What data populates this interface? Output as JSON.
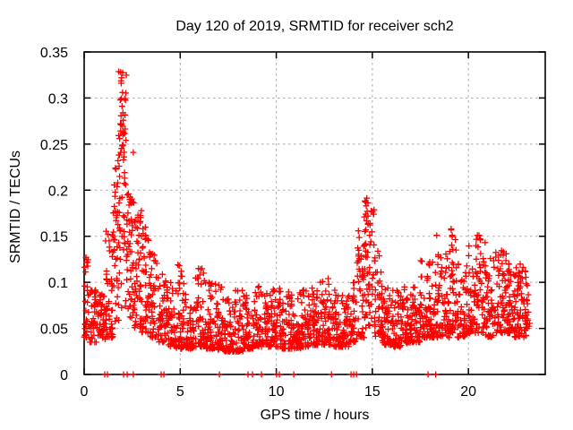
{
  "chart_data": {
    "type": "scatter",
    "title": "Day 120 of 2019, SRMTID for receiver sch2",
    "xlabel": "GPS time / hours",
    "ylabel": "SRMTID / TECUs",
    "xlim": [
      0,
      24
    ],
    "ylim": [
      0,
      0.35
    ],
    "xticks": [
      0,
      5,
      10,
      15,
      20
    ],
    "xtick_labels": [
      "0",
      "5",
      "10",
      "15",
      "20"
    ],
    "yticks": [
      0,
      0.05,
      0.1,
      0.15,
      0.2,
      0.25,
      0.3,
      0.35
    ],
    "ytick_labels": [
      "0",
      "0.05",
      "0.1",
      "0.15",
      "0.2",
      "0.25",
      "0.3",
      "0.35"
    ],
    "grid": true,
    "grid_style": "dashed",
    "legend": "none",
    "marker": {
      "shape": "plus",
      "size": 7,
      "color": "#ff0000",
      "stroke": 1.3
    },
    "axis_color": "#000000",
    "grid_color": "#a8a8a8",
    "background": "#ffffff",
    "seed": 7,
    "bands_format": [
      "x_start_hour",
      "x_end_hour",
      "y_min_TECU",
      "y_max_TECU",
      "n_points",
      "low_bias_exponent"
    ],
    "bands": [
      [
        0.0,
        0.3,
        0.04,
        0.13,
        30,
        1.8
      ],
      [
        0.3,
        0.7,
        0.035,
        0.092,
        40,
        1.8
      ],
      [
        0.7,
        1.1,
        0.038,
        0.088,
        40,
        1.8
      ],
      [
        1.1,
        1.5,
        0.04,
        0.158,
        45,
        1.9
      ],
      [
        1.5,
        1.8,
        0.05,
        0.235,
        38,
        1.1
      ],
      [
        1.8,
        2.2,
        0.07,
        0.335,
        55,
        1.0
      ],
      [
        2.2,
        2.6,
        0.06,
        0.2,
        48,
        1.3
      ],
      [
        2.6,
        3.0,
        0.05,
        0.178,
        48,
        1.3
      ],
      [
        3.0,
        3.4,
        0.045,
        0.168,
        40,
        1.5
      ],
      [
        3.4,
        3.8,
        0.04,
        0.132,
        40,
        1.7
      ],
      [
        3.8,
        4.3,
        0.035,
        0.112,
        48,
        1.8
      ],
      [
        4.3,
        4.8,
        0.03,
        0.102,
        48,
        1.9
      ],
      [
        4.8,
        5.3,
        0.028,
        0.122,
        50,
        2.0
      ],
      [
        5.3,
        5.8,
        0.028,
        0.078,
        50,
        1.8
      ],
      [
        5.8,
        6.3,
        0.03,
        0.118,
        50,
        2.1
      ],
      [
        6.3,
        6.8,
        0.028,
        0.1,
        50,
        2.0
      ],
      [
        6.8,
        7.3,
        0.026,
        0.098,
        50,
        2.1
      ],
      [
        7.3,
        7.8,
        0.025,
        0.082,
        50,
        1.9
      ],
      [
        7.8,
        8.3,
        0.025,
        0.092,
        50,
        2.0
      ],
      [
        8.3,
        8.8,
        0.028,
        0.086,
        50,
        1.9
      ],
      [
        8.8,
        9.3,
        0.03,
        0.096,
        50,
        2.0
      ],
      [
        9.3,
        9.8,
        0.03,
        0.092,
        50,
        1.9
      ],
      [
        9.8,
        10.3,
        0.03,
        0.096,
        50,
        2.0
      ],
      [
        10.3,
        10.8,
        0.028,
        0.09,
        50,
        1.9
      ],
      [
        10.8,
        11.3,
        0.028,
        0.094,
        50,
        2.0
      ],
      [
        11.3,
        11.8,
        0.03,
        0.092,
        50,
        1.9
      ],
      [
        11.8,
        12.3,
        0.032,
        0.106,
        50,
        1.9
      ],
      [
        12.3,
        12.8,
        0.032,
        0.104,
        50,
        1.9
      ],
      [
        12.8,
        13.3,
        0.03,
        0.092,
        50,
        1.9
      ],
      [
        13.3,
        13.8,
        0.03,
        0.09,
        50,
        1.9
      ],
      [
        13.8,
        14.2,
        0.035,
        0.108,
        42,
        1.8
      ],
      [
        14.2,
        14.6,
        0.04,
        0.158,
        42,
        1.4
      ],
      [
        14.6,
        15.1,
        0.05,
        0.192,
        52,
        1.1
      ],
      [
        15.1,
        15.5,
        0.04,
        0.138,
        38,
        1.6
      ],
      [
        15.5,
        16.0,
        0.032,
        0.098,
        50,
        1.9
      ],
      [
        16.0,
        16.5,
        0.03,
        0.092,
        50,
        1.9
      ],
      [
        16.5,
        17.0,
        0.034,
        0.102,
        50,
        1.9
      ],
      [
        17.0,
        17.5,
        0.035,
        0.108,
        50,
        1.9
      ],
      [
        17.5,
        18.0,
        0.04,
        0.13,
        50,
        1.8
      ],
      [
        18.0,
        18.5,
        0.04,
        0.148,
        50,
        1.8
      ],
      [
        18.5,
        19.0,
        0.04,
        0.132,
        50,
        1.8
      ],
      [
        19.0,
        19.4,
        0.045,
        0.16,
        42,
        1.5
      ],
      [
        19.4,
        19.9,
        0.04,
        0.122,
        45,
        1.8
      ],
      [
        19.9,
        20.4,
        0.045,
        0.142,
        48,
        1.7
      ],
      [
        20.4,
        20.9,
        0.045,
        0.152,
        48,
        1.6
      ],
      [
        20.9,
        21.4,
        0.04,
        0.128,
        48,
        1.7
      ],
      [
        21.4,
        21.9,
        0.045,
        0.138,
        50,
        1.6
      ],
      [
        21.9,
        22.4,
        0.045,
        0.134,
        60,
        1.5
      ],
      [
        22.4,
        23.0,
        0.04,
        0.124,
        75,
        1.5
      ],
      [
        23.0,
        23.2,
        0.05,
        0.105,
        16,
        1.5
      ]
    ],
    "peak_points": [
      [
        0.1,
        0.127
      ],
      [
        0.16,
        0.122
      ],
      [
        1.25,
        0.152
      ],
      [
        1.3,
        0.145
      ],
      [
        1.76,
        0.232
      ],
      [
        1.82,
        0.226
      ],
      [
        1.85,
        0.256
      ],
      [
        1.88,
        0.298
      ],
      [
        1.9,
        0.328
      ],
      [
        1.9,
        0.241
      ],
      [
        1.92,
        0.271
      ],
      [
        1.93,
        0.316
      ],
      [
        1.95,
        0.322
      ],
      [
        1.97,
        0.291
      ],
      [
        2.0,
        0.306
      ],
      [
        2.0,
        0.249
      ],
      [
        2.02,
        0.284
      ],
      [
        2.05,
        0.262
      ],
      [
        2.1,
        0.219
      ],
      [
        2.16,
        0.206
      ],
      [
        2.3,
        0.196
      ],
      [
        2.46,
        0.186
      ],
      [
        2.56,
        0.241
      ],
      [
        2.8,
        0.173
      ],
      [
        2.92,
        0.166
      ],
      [
        3.06,
        0.158
      ],
      [
        3.2,
        0.151
      ],
      [
        3.45,
        0.13
      ],
      [
        4.95,
        0.118
      ],
      [
        5.05,
        0.112
      ],
      [
        5.95,
        0.115
      ],
      [
        6.02,
        0.108
      ],
      [
        6.5,
        0.1
      ],
      [
        7.0,
        0.097
      ],
      [
        12.3,
        0.1
      ],
      [
        12.7,
        0.104
      ],
      [
        14.55,
        0.139
      ],
      [
        14.58,
        0.171
      ],
      [
        14.62,
        0.188
      ],
      [
        14.66,
        0.157
      ],
      [
        14.68,
        0.183
      ],
      [
        14.73,
        0.177
      ],
      [
        14.78,
        0.164
      ],
      [
        14.86,
        0.151
      ],
      [
        14.92,
        0.144
      ],
      [
        18.35,
        0.151
      ],
      [
        19.1,
        0.158
      ],
      [
        19.16,
        0.151
      ],
      [
        20.55,
        0.151
      ],
      [
        20.62,
        0.146
      ],
      [
        21.97,
        0.131
      ]
    ],
    "zero_points": [
      1.07,
      1.21,
      2.05,
      2.24,
      2.56,
      4.01,
      4.15,
      7.04,
      8.53,
      8.76,
      9.23,
      10.02,
      10.16,
      10.91,
      12.87,
      13.89,
      14.03,
      14.17,
      17.9,
      18.3
    ]
  }
}
